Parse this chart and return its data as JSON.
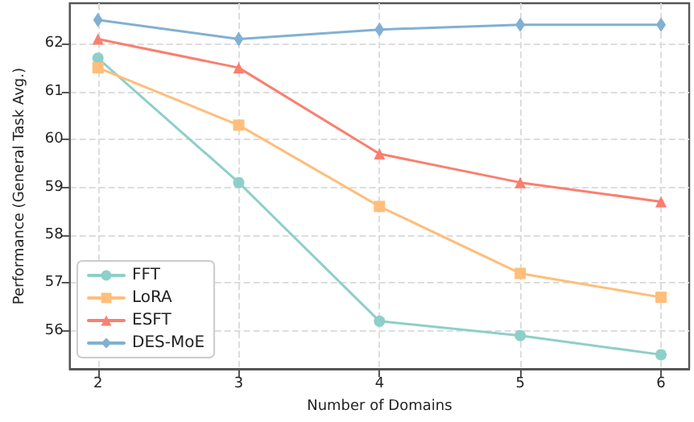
{
  "chart_data": {
    "type": "line",
    "xlabel": "Number of Domains",
    "ylabel": "Performance (General Task Avg.)",
    "x": [
      2,
      3,
      4,
      5,
      6
    ],
    "xlim": [
      1.8,
      6.2
    ],
    "xticks": [
      2,
      3,
      4,
      5,
      6
    ],
    "ylim": [
      55.2,
      62.85
    ],
    "yticks": [
      56,
      57,
      58,
      59,
      60,
      61,
      62
    ],
    "grid": true,
    "legend": "bottom left",
    "line_style": "solid",
    "series": [
      {
        "name": "FFT",
        "color": "#8ecfc9",
        "marker": "circle",
        "values": [
          61.7,
          59.1,
          56.2,
          55.9,
          55.5
        ]
      },
      {
        "name": "LoRA",
        "color": "#ffbe7a",
        "marker": "square",
        "values": [
          61.5,
          60.3,
          58.6,
          57.2,
          56.7
        ]
      },
      {
        "name": "ESFT",
        "color": "#fa7f6f",
        "marker": "triangle",
        "values": [
          62.1,
          61.5,
          59.7,
          59.1,
          58.7
        ]
      },
      {
        "name": "DES-MoE",
        "color": "#82b0d2",
        "marker": "diamond",
        "values": [
          62.5,
          62.1,
          62.3,
          62.4,
          62.4
        ]
      }
    ]
  }
}
